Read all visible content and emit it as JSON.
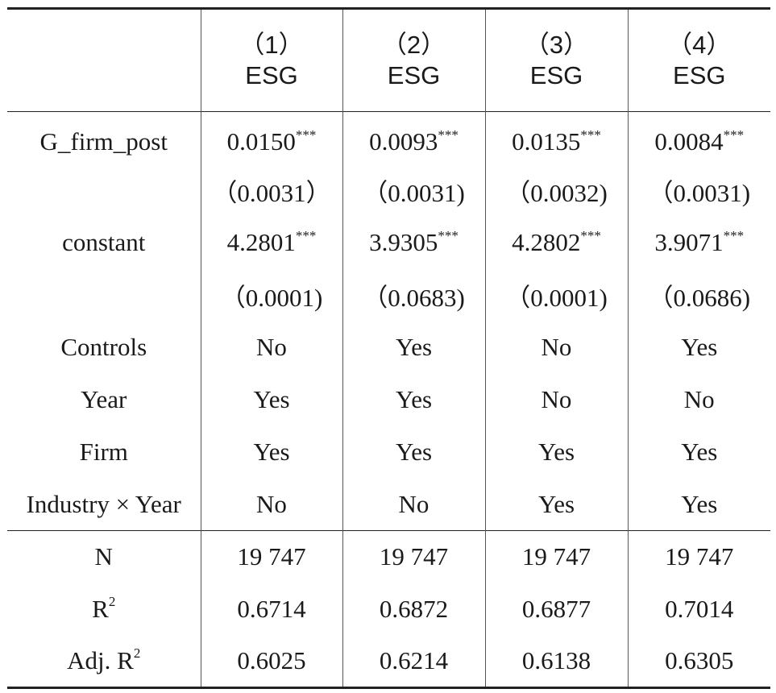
{
  "header": {
    "columns": [
      {
        "num": "（1）",
        "label": "ESG"
      },
      {
        "num": "（2）",
        "label": "ESG"
      },
      {
        "num": "（3）",
        "label": "ESG"
      },
      {
        "num": "（4）",
        "label": "ESG"
      }
    ]
  },
  "rows": [
    {
      "label": "G_firm_post",
      "cells": [
        {
          "v": "0.0150",
          "sig": "***"
        },
        {
          "v": "0.0093",
          "sig": "***"
        },
        {
          "v": "0.0135",
          "sig": "***"
        },
        {
          "v": "0.0084",
          "sig": "***"
        }
      ]
    },
    {
      "label": "",
      "cells": [
        {
          "v": "（0.0031）"
        },
        {
          "v": "（0.0031)"
        },
        {
          "v": "（0.0032)"
        },
        {
          "v": "（0.0031)"
        }
      ]
    },
    {
      "label": "constant",
      "cells": [
        {
          "v": "4.2801",
          "sig": "***"
        },
        {
          "v": "3.9305",
          "sig": "***"
        },
        {
          "v": "4.2802",
          "sig": "***"
        },
        {
          "v": "3.9071",
          "sig": "***"
        }
      ]
    },
    {
      "label": "",
      "cells": [
        {
          "v": "（0.0001)"
        },
        {
          "v": "（0.0683)"
        },
        {
          "v": "（0.0001)"
        },
        {
          "v": "（0.0686)"
        }
      ]
    },
    {
      "label": "Controls",
      "cells": [
        {
          "v": "No"
        },
        {
          "v": "Yes"
        },
        {
          "v": "No"
        },
        {
          "v": "Yes"
        }
      ]
    },
    {
      "label": "Year",
      "cells": [
        {
          "v": "Yes"
        },
        {
          "v": "Yes"
        },
        {
          "v": "No"
        },
        {
          "v": "No"
        }
      ]
    },
    {
      "label": "Firm",
      "cells": [
        {
          "v": "Yes"
        },
        {
          "v": "Yes"
        },
        {
          "v": "Yes"
        },
        {
          "v": "Yes"
        }
      ]
    },
    {
      "label": "Industry × Year",
      "cells": [
        {
          "v": "No"
        },
        {
          "v": "No"
        },
        {
          "v": "Yes"
        },
        {
          "v": "Yes"
        }
      ]
    }
  ],
  "stats": [
    {
      "label": "N",
      "cells": [
        "19 747",
        "19 747",
        "19 747",
        "19 747"
      ]
    },
    {
      "label": "R",
      "label_sup": "2",
      "cells": [
        "0.6714",
        "0.6872",
        "0.6877",
        "0.7014"
      ]
    },
    {
      "label": "Adj. R",
      "label_sup": "2",
      "cells": [
        "0.6025",
        "0.6214",
        "0.6138",
        "0.6305"
      ]
    }
  ]
}
